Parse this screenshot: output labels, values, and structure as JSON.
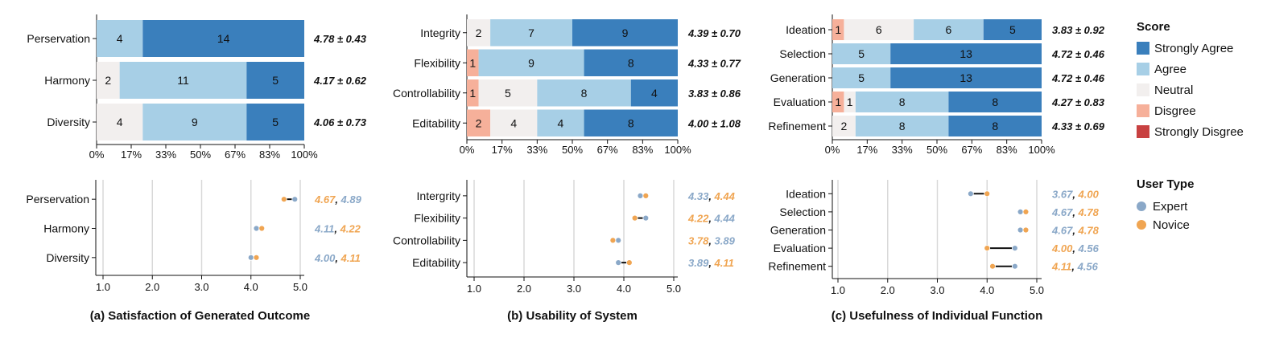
{
  "colors": {
    "strongly_agree": "#3a7fbc",
    "agree": "#a7cfe6",
    "neutral": "#f2efee",
    "disagree": "#f6b09a",
    "strongly_disagree": "#c84141",
    "expert": "#8aa8c8",
    "novice": "#f0a552",
    "connector": "#111111",
    "grid": "#d8d8d8"
  },
  "legend_score": {
    "title": "Score",
    "items": [
      "Strongly Agree",
      "Agree",
      "Neutral",
      "Disgree",
      "Strongly Disgree"
    ]
  },
  "legend_user": {
    "title": "User Type",
    "items": [
      "Expert",
      "Novice"
    ]
  },
  "chart_data": [
    {
      "type": "bar",
      "stacked": "horizontal",
      "panel": "a",
      "categories": [
        "Perservation",
        "Harmony",
        "Diversity"
      ],
      "series": [
        {
          "name": "Disgree",
          "values": [
            0,
            0,
            0
          ]
        },
        {
          "name": "Neutral",
          "values": [
            0,
            2,
            4
          ]
        },
        {
          "name": "Agree",
          "values": [
            4,
            11,
            9
          ]
        },
        {
          "name": "Strongly Agree",
          "values": [
            14,
            5,
            5
          ]
        }
      ],
      "stats": [
        "4.78 ± 0.43",
        "4.17 ± 0.62",
        "4.06 ± 0.73"
      ],
      "xticks": [
        "0%",
        "17%",
        "33%",
        "50%",
        "67%",
        "83%",
        "100%"
      ],
      "xlim": [
        0,
        18
      ]
    },
    {
      "type": "bar",
      "stacked": "horizontal",
      "panel": "b",
      "categories": [
        "Integrity",
        "Flexibility",
        "Controllability",
        "Editability"
      ],
      "series": [
        {
          "name": "Disgree",
          "values": [
            0,
            1,
            1,
            2
          ]
        },
        {
          "name": "Neutral",
          "values": [
            2,
            0,
            5,
            4
          ]
        },
        {
          "name": "Agree",
          "values": [
            7,
            9,
            8,
            4
          ]
        },
        {
          "name": "Strongly Agree",
          "values": [
            9,
            8,
            4,
            8
          ]
        }
      ],
      "stats": [
        "4.39 ± 0.70",
        "4.33 ± 0.77",
        "3.83 ± 0.86",
        "4.00 ± 1.08"
      ],
      "xticks": [
        "0%",
        "17%",
        "33%",
        "50%",
        "67%",
        "83%",
        "100%"
      ],
      "xlim": [
        0,
        18
      ]
    },
    {
      "type": "bar",
      "stacked": "horizontal",
      "panel": "c",
      "categories": [
        "Ideation",
        "Selection",
        "Generation",
        "Evaluation",
        "Refinement"
      ],
      "series": [
        {
          "name": "Disgree",
          "values": [
            1,
            0,
            0,
            1,
            0
          ]
        },
        {
          "name": "Neutral",
          "values": [
            6,
            0,
            0,
            1,
            2
          ]
        },
        {
          "name": "Agree",
          "values": [
            6,
            5,
            5,
            8,
            8
          ]
        },
        {
          "name": "Strongly Agree",
          "values": [
            5,
            13,
            13,
            8,
            8
          ]
        }
      ],
      "stats": [
        "3.83 ± 0.92",
        "4.72 ± 0.46",
        "4.72 ± 0.46",
        "4.27 ± 0.83",
        "4.33 ± 0.69"
      ],
      "xticks": [
        "0%",
        "17%",
        "33%",
        "50%",
        "67%",
        "83%",
        "100%"
      ],
      "xlim": [
        0,
        18
      ]
    },
    {
      "type": "scatter",
      "style": "dumbbell",
      "panel": "a",
      "categories": [
        "Perservation",
        "Harmony",
        "Diversity"
      ],
      "expert": [
        4.89,
        4.11,
        4.0
      ],
      "novice": [
        4.67,
        4.22,
        4.11
      ],
      "xlim": [
        1,
        5
      ],
      "xticks": [
        "1.0",
        "2.0",
        "3.0",
        "4.0",
        "5.0"
      ],
      "subtitle": "(a) Satisfaction of Generated Outcome"
    },
    {
      "type": "scatter",
      "style": "dumbbell",
      "panel": "b",
      "categories": [
        "Intergrity",
        "Flexibility",
        "Controllability",
        "Editability"
      ],
      "expert": [
        4.33,
        4.44,
        3.89,
        3.89
      ],
      "novice": [
        4.44,
        4.22,
        3.78,
        4.11
      ],
      "xlim": [
        1,
        5
      ],
      "xticks": [
        "1.0",
        "2.0",
        "3.0",
        "4.0",
        "5.0"
      ],
      "subtitle": "(b) Usability of System"
    },
    {
      "type": "scatter",
      "style": "dumbbell",
      "panel": "c",
      "categories": [
        "Ideation",
        "Selection",
        "Generation",
        "Evaluation",
        "Refinement"
      ],
      "expert": [
        3.67,
        4.67,
        4.67,
        4.56,
        4.56
      ],
      "novice": [
        4.0,
        4.78,
        4.78,
        4.0,
        4.11
      ],
      "xlim": [
        1,
        5
      ],
      "xticks": [
        "1.0",
        "2.0",
        "3.0",
        "4.0",
        "5.0"
      ],
      "subtitle": "(c) Usefulness of Individual Function"
    }
  ]
}
